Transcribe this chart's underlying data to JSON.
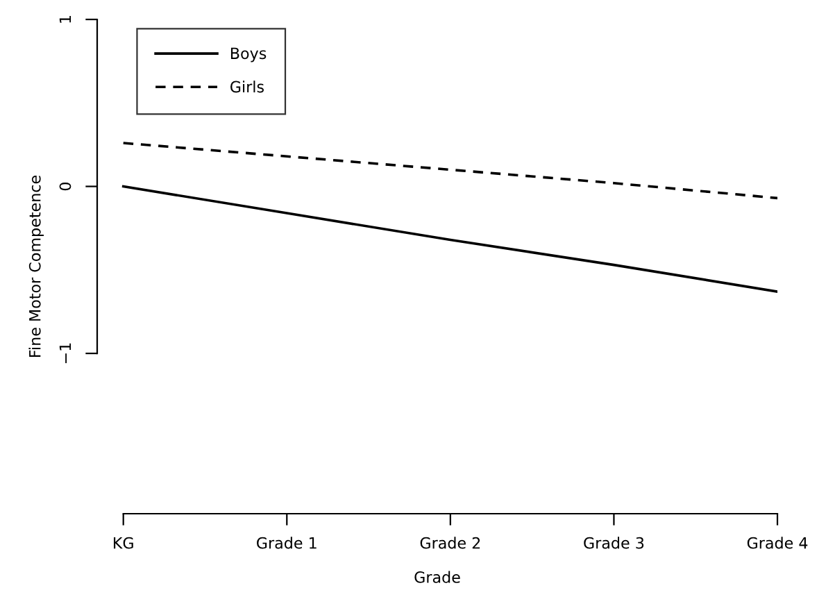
{
  "chart_data": {
    "type": "line",
    "xlabel": "Grade",
    "ylabel": "Fine Motor Competence",
    "categories": [
      "KG",
      "Grade 1",
      "Grade 2",
      "Grade 3",
      "Grade 4"
    ],
    "series": [
      {
        "name": "Boys",
        "color": "#000000",
        "values": [
          0.0,
          -0.16,
          -0.32,
          -0.47,
          -0.63
        ],
        "line_style": "solid"
      },
      {
        "name": "Girls",
        "color": "#000000",
        "values": [
          0.26,
          0.18,
          0.1,
          0.02,
          -0.07
        ],
        "line_style": "dashed"
      }
    ],
    "ylim": [
      -1.96,
      1
    ],
    "yticks": [
      {
        "value": -1,
        "label": "−1"
      },
      0,
      1
    ],
    "legend": "top left",
    "grid": false
  }
}
